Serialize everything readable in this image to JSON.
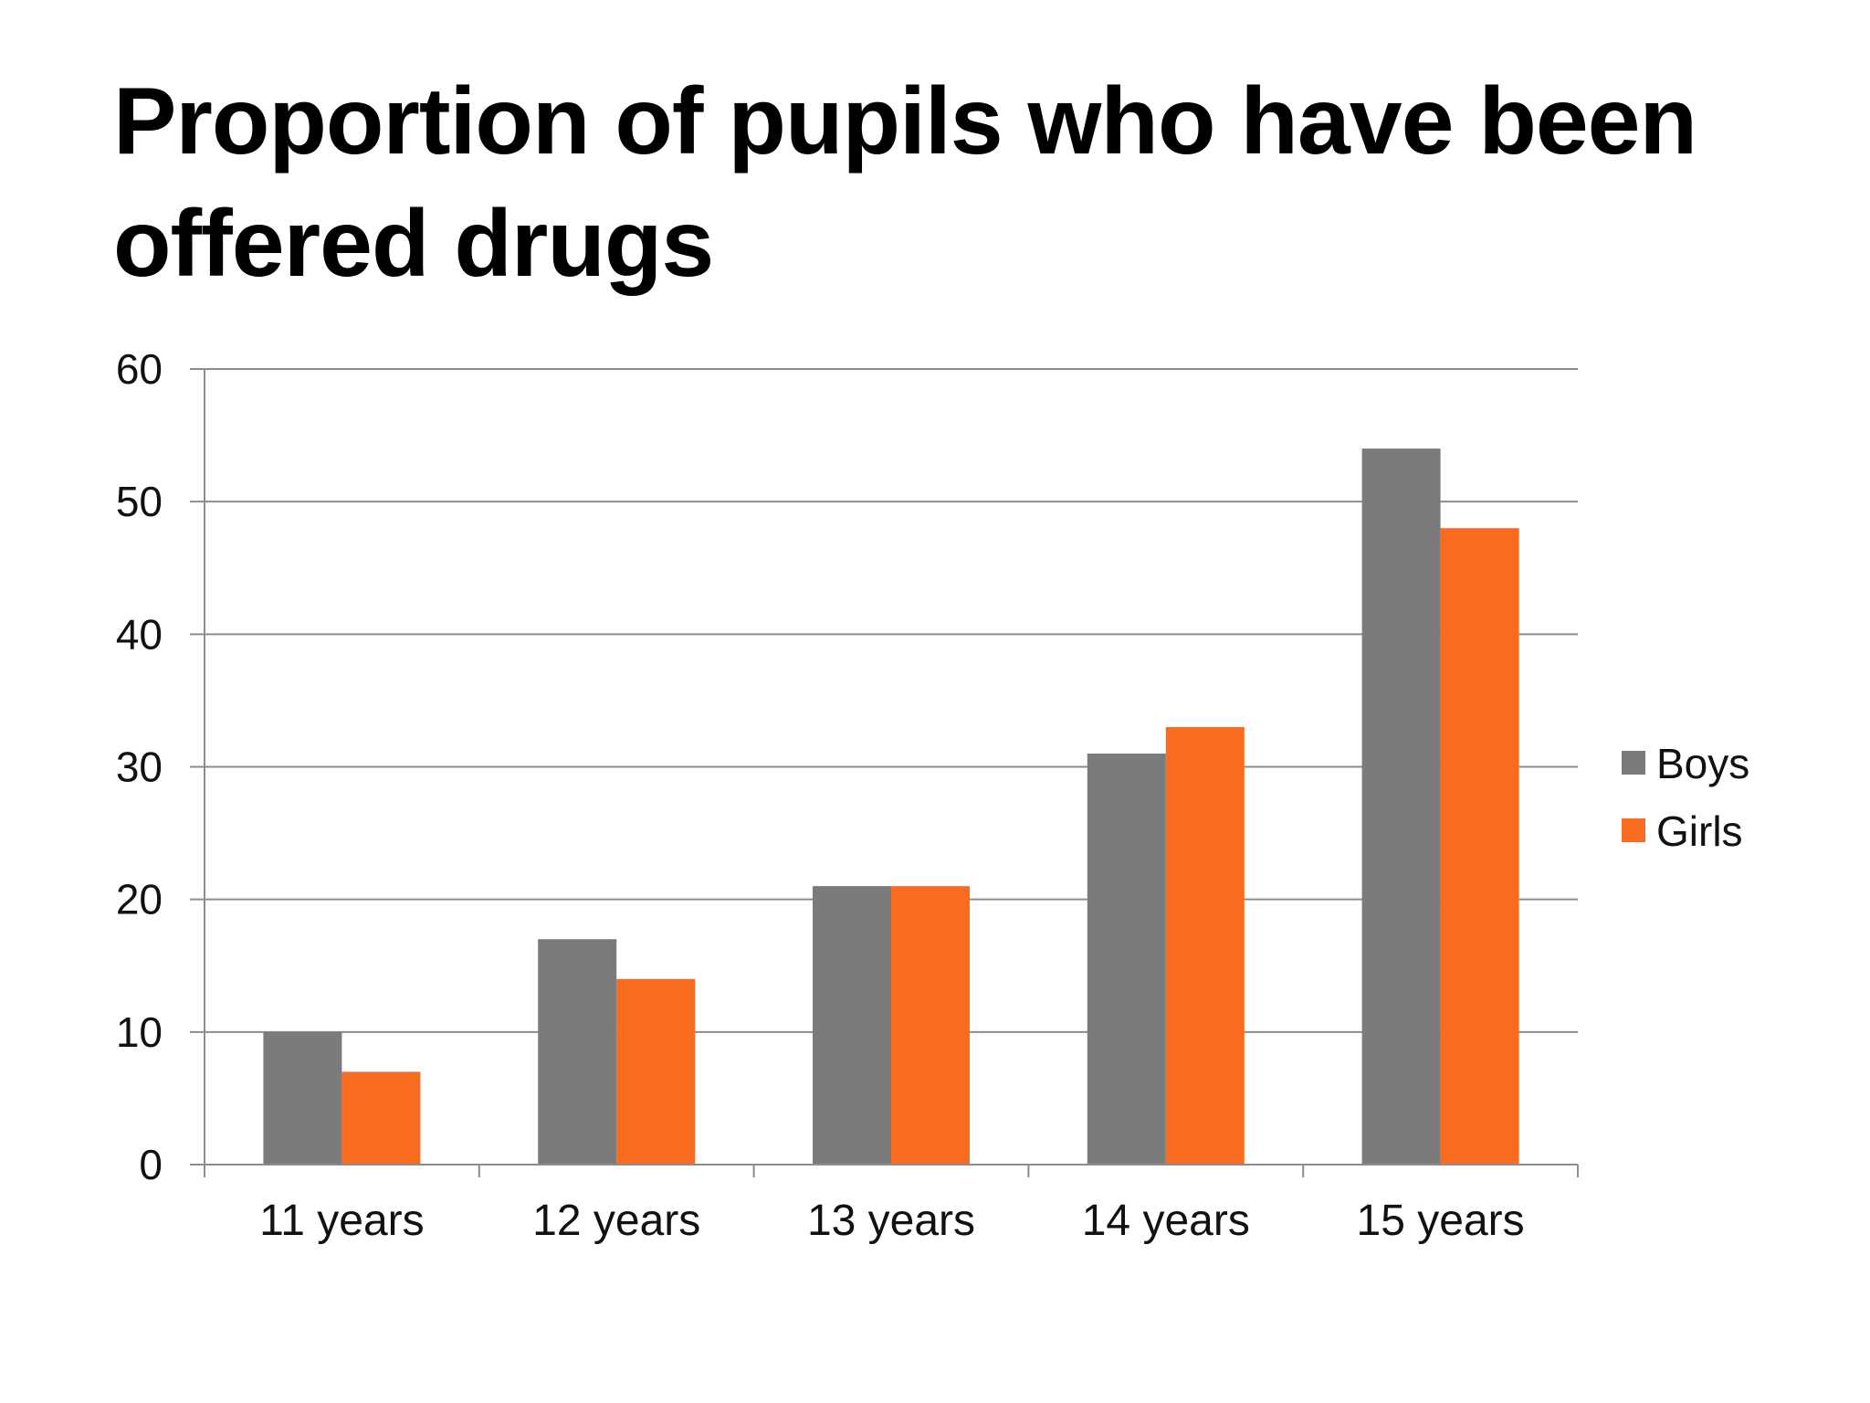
{
  "slide": {
    "title": "Proportion of pupils who have been offered drugs"
  },
  "colors": {
    "boys": "#7b7a7d",
    "girls": "#f96b1e",
    "gridline": "#8c8c8c",
    "axis": "#8c8c8c"
  },
  "chart_data": {
    "type": "bar",
    "title": "Proportion of pupils who have been offered drugs",
    "xlabel": "",
    "ylabel": "",
    "categories": [
      "11 years",
      "12 years",
      "13 years",
      "14 years",
      "15 years"
    ],
    "series": [
      {
        "name": "Boys",
        "values": [
          10,
          17,
          21,
          31,
          54
        ]
      },
      {
        "name": "Girls",
        "values": [
          7,
          14,
          21,
          33,
          48
        ]
      }
    ],
    "ylim": [
      0,
      60
    ],
    "yticks": [
      0,
      10,
      20,
      30,
      40,
      50,
      60
    ],
    "grid": true,
    "legend": "right"
  }
}
